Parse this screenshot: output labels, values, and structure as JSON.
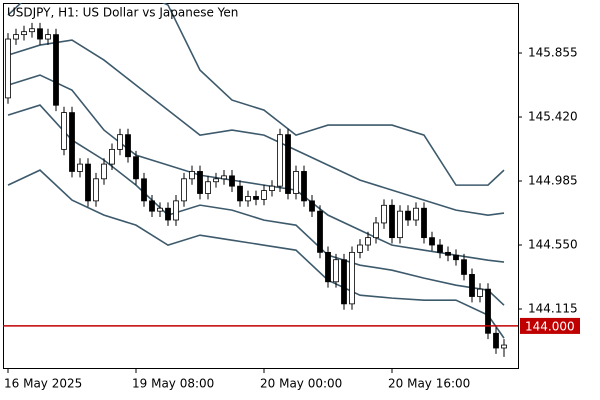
{
  "chart_data": {
    "type": "candlestick",
    "title": "USDJPY, H1:  US Dollar vs Japanese Yen",
    "categories": [
      "16 May 2025",
      null,
      null,
      null,
      null,
      null,
      null,
      null,
      null,
      null,
      null,
      null,
      null,
      null,
      null,
      null,
      "19 May 08:00",
      null,
      null,
      null,
      null,
      null,
      null,
      null,
      null,
      null,
      null,
      null,
      null,
      null,
      null,
      null,
      "20 May 00:00",
      null,
      null,
      null,
      null,
      null,
      null,
      null,
      null,
      null,
      null,
      null,
      null,
      null,
      null,
      null,
      "20 May 16:00",
      null,
      null,
      null,
      null,
      null,
      null,
      null,
      null,
      null,
      null,
      null,
      null,
      null,
      null
    ],
    "open": [
      145.55,
      145.95,
      145.98,
      146.0,
      146.02,
      145.95,
      145.98,
      145.2,
      145.45,
      145.05,
      145.1,
      144.85,
      145.0,
      145.1,
      145.2,
      145.3,
      145.15,
      145.0,
      144.85,
      144.78,
      144.8,
      144.72,
      144.85,
      145.0,
      145.05,
      144.9,
      144.98,
      145.0,
      145.02,
      144.95,
      144.85,
      144.88,
      144.86,
      144.92,
      144.95,
      145.3,
      144.9,
      145.05,
      144.85,
      144.78,
      144.5,
      144.3,
      144.45,
      144.15,
      144.5,
      144.55,
      144.6,
      144.7,
      144.82,
      144.6,
      144.78,
      144.72,
      144.8,
      144.6,
      144.55,
      144.5,
      144.48,
      144.45,
      144.35,
      144.2,
      144.25,
      143.95,
      143.85
    ],
    "high": [
      145.99,
      146.02,
      146.04,
      146.06,
      146.06,
      146.02,
      146.02,
      145.49,
      145.49,
      145.14,
      145.14,
      145.04,
      145.14,
      145.24,
      145.34,
      145.34,
      145.19,
      145.04,
      144.89,
      144.84,
      144.84,
      144.89,
      145.04,
      145.09,
      145.09,
      145.02,
      145.04,
      145.06,
      145.06,
      144.99,
      144.92,
      144.92,
      144.96,
      144.99,
      145.34,
      145.34,
      145.09,
      145.09,
      144.89,
      144.82,
      144.54,
      144.49,
      144.49,
      144.54,
      144.59,
      144.64,
      144.74,
      144.86,
      144.86,
      144.82,
      144.82,
      144.84,
      144.84,
      144.64,
      144.59,
      144.54,
      144.52,
      144.49,
      144.39,
      144.29,
      144.29,
      143.99,
      143.91
    ],
    "low": [
      145.51,
      145.91,
      145.94,
      145.96,
      145.91,
      145.91,
      145.46,
      145.16,
      145.01,
      145.01,
      144.81,
      144.81,
      144.96,
      145.06,
      145.16,
      145.11,
      144.96,
      144.81,
      144.74,
      144.74,
      144.68,
      144.68,
      144.81,
      144.96,
      144.86,
      144.86,
      144.94,
      144.96,
      144.91,
      144.81,
      144.81,
      144.82,
      144.82,
      144.88,
      144.91,
      144.86,
      144.86,
      144.81,
      144.74,
      144.46,
      144.26,
      144.26,
      144.11,
      144.11,
      144.46,
      144.51,
      144.56,
      144.66,
      144.56,
      144.56,
      144.68,
      144.68,
      144.56,
      144.51,
      144.46,
      144.44,
      144.41,
      144.31,
      144.16,
      144.16,
      143.91,
      143.81,
      143.79
    ],
    "close": [
      145.95,
      145.98,
      146.0,
      146.02,
      145.95,
      145.98,
      145.5,
      145.45,
      145.05,
      145.1,
      144.85,
      145.0,
      145.1,
      145.2,
      145.3,
      145.15,
      145.0,
      144.85,
      144.78,
      144.8,
      144.72,
      144.85,
      145.0,
      145.05,
      144.9,
      144.98,
      145.0,
      145.02,
      144.95,
      144.85,
      144.88,
      144.86,
      144.92,
      144.95,
      145.3,
      144.9,
      145.05,
      144.85,
      144.78,
      144.5,
      144.3,
      144.45,
      144.15,
      144.5,
      144.55,
      144.6,
      144.7,
      144.82,
      144.6,
      144.78,
      144.72,
      144.8,
      144.6,
      144.55,
      144.5,
      144.48,
      144.45,
      144.35,
      144.2,
      144.25,
      143.95,
      143.85,
      143.87
    ],
    "up_color": "#ffffff",
    "down_color": "#000000",
    "bands": {
      "x": [
        0,
        4,
        8,
        12,
        16,
        20,
        24,
        28,
        32,
        36,
        40,
        44,
        48,
        52,
        56,
        60,
        62
      ],
      "color": "#3d5a6c",
      "series": [
        {
          "values": [
            146.113,
            146.317,
            146.385,
            146.351,
            146.283,
            146.181,
            145.739,
            145.535,
            145.467,
            145.297,
            145.365,
            145.365,
            145.365,
            145.297,
            144.957,
            144.957,
            145.059
          ]
        },
        {
          "values": [
            145.841,
            145.909,
            145.943,
            145.807,
            145.637,
            145.467,
            145.297,
            145.331,
            145.297,
            145.195,
            145.093,
            144.991,
            144.923,
            144.855,
            144.787,
            144.753,
            144.767
          ]
        },
        {
          "values": [
            145.637,
            145.705,
            145.603,
            145.331,
            145.161,
            145.093,
            145.025,
            144.991,
            144.957,
            144.923,
            144.753,
            144.651,
            144.549,
            144.515,
            144.481,
            144.447,
            144.434
          ]
        },
        {
          "values": [
            145.433,
            145.501,
            145.263,
            145.127,
            144.957,
            144.753,
            144.821,
            144.787,
            144.719,
            144.685,
            144.481,
            144.413,
            144.379,
            144.325,
            144.277,
            144.243,
            144.141
          ]
        },
        {
          "values": [
            144.957,
            145.059,
            144.855,
            144.753,
            144.685,
            144.549,
            144.617,
            144.583,
            144.549,
            144.515,
            144.311,
            144.209,
            144.189,
            144.175,
            144.175,
            144.073,
            143.917
          ]
        }
      ]
    },
    "price_line": {
      "value": 144.0,
      "label": "144.000",
      "color": "#c00000"
    },
    "ylim": [
      143.714,
      146.195
    ],
    "yticks": [
      {
        "value": 144.115,
        "label": "144.115"
      },
      {
        "value": 144.55,
        "label": "144.550"
      },
      144.985,
      {
        "value": 145.42,
        "label": "145.420"
      },
      145.855
    ]
  }
}
